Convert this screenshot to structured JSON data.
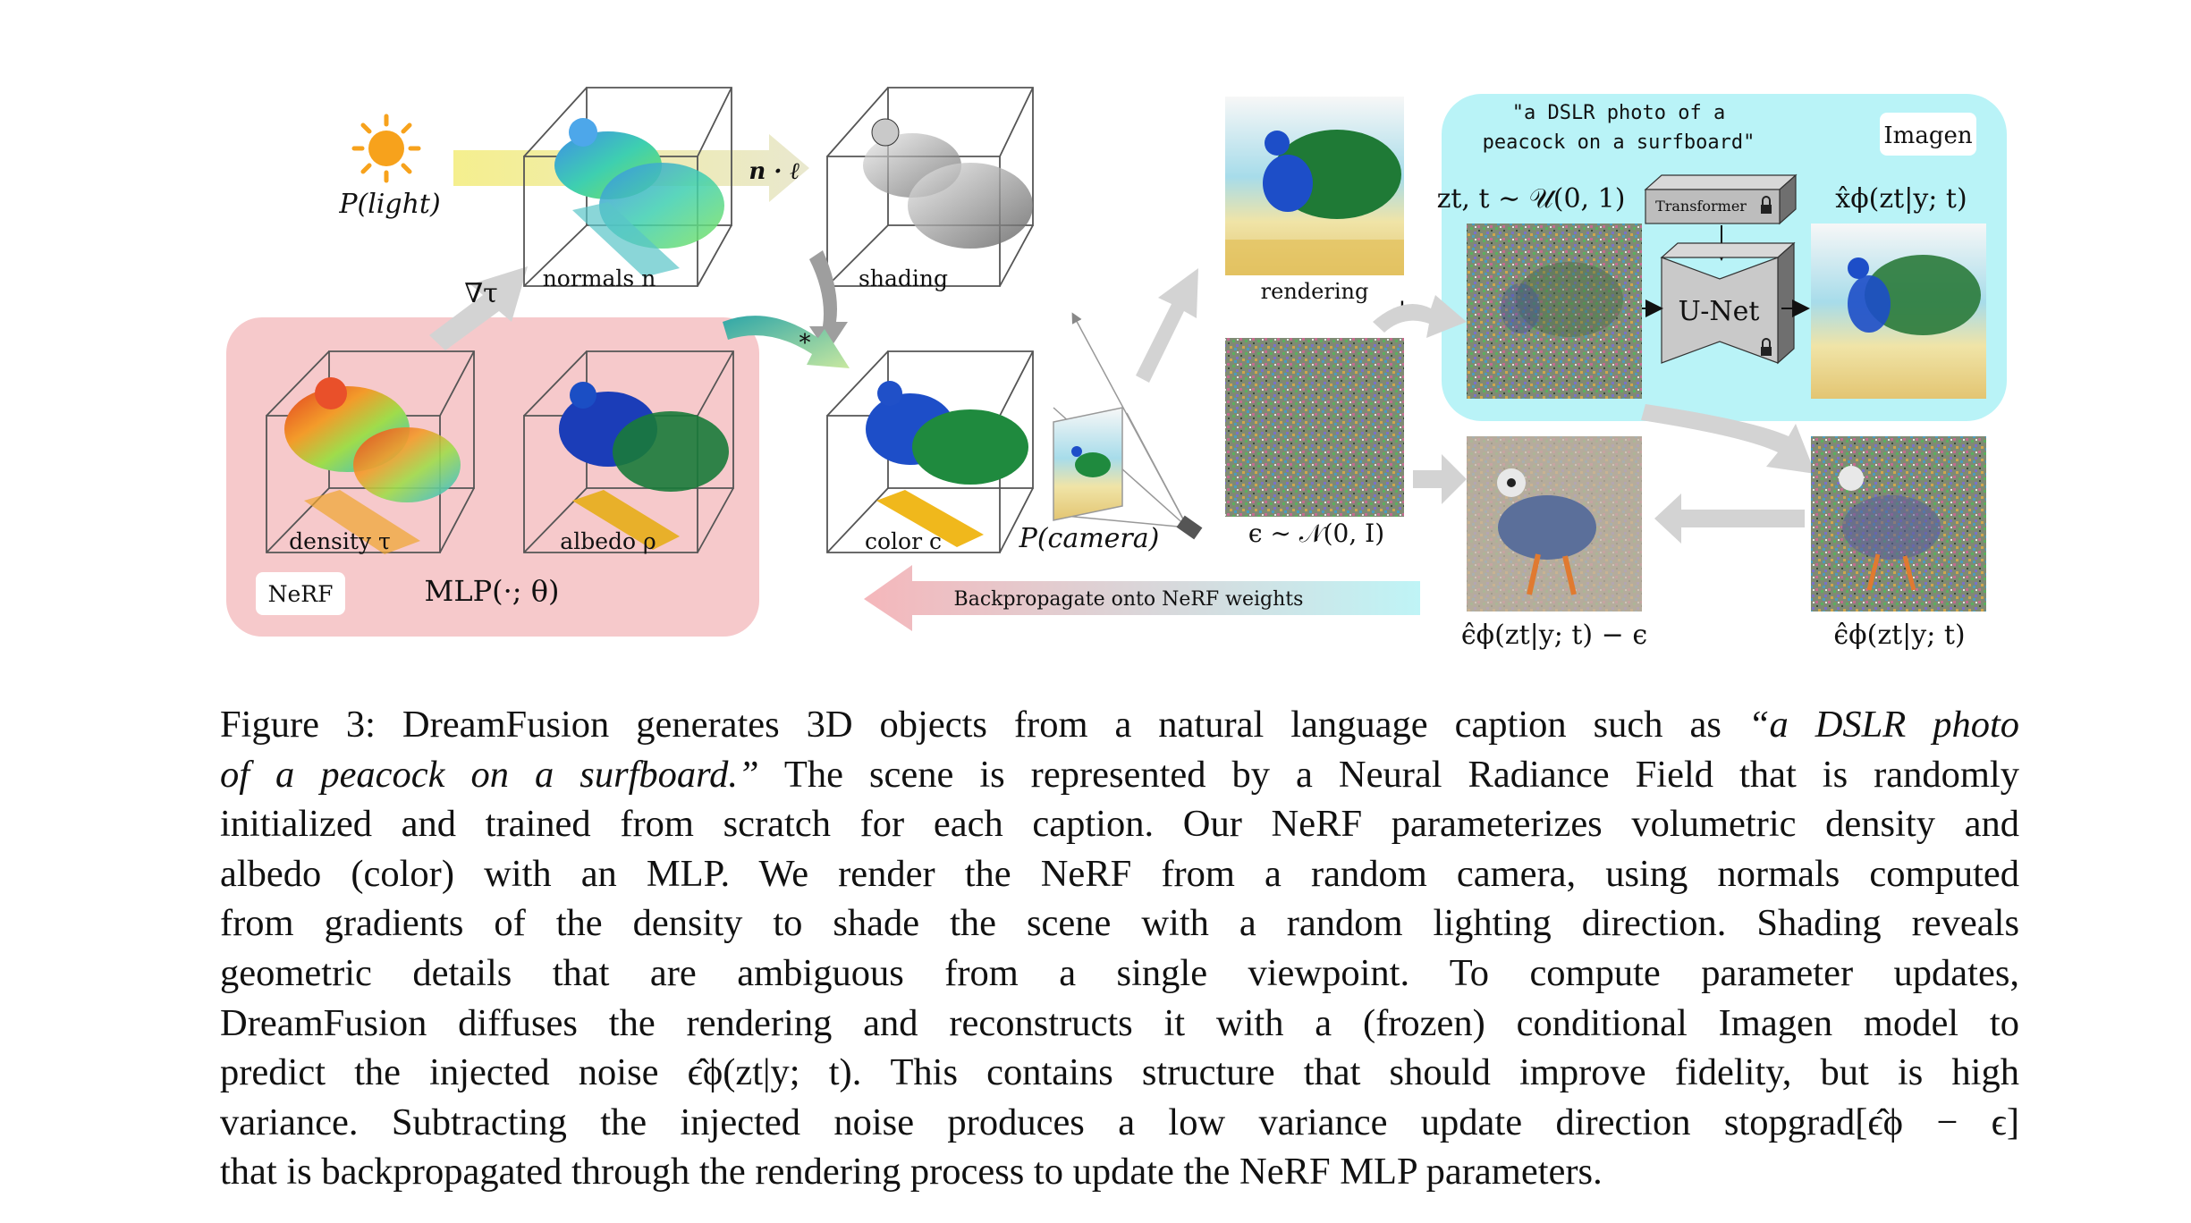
{
  "figure": {
    "light_label": "P(light)",
    "grad_label": "∇τ",
    "normals_label": "normals n",
    "dot_label": "n · ℓ",
    "shading_label": "shading",
    "star_label": "*",
    "density_label": "density τ",
    "albedo_label": "albedo ρ",
    "nerf_badge": "NeRF",
    "mlp_label": "MLP(·; θ)",
    "color_label": "color c",
    "camera_label": "P(camera)",
    "backprop_label": "Backpropagate onto NeRF weights",
    "rendering_label": "rendering",
    "plus_label": "+",
    "noise_label": "ϵ ∼ 𝒩(0, I)",
    "prompt_line1": "\"a DSLR photo of a",
    "prompt_line2": "peacock on a surfboard\"",
    "imagen_badge": "Imagen",
    "zt_label": "zt, t ∼ 𝒰(0, 1)",
    "transformer_label": "Transformer",
    "unet_label": "U-Net",
    "xhat_label": "x̂ϕ(zt|y; t)",
    "diff_label": "ϵ̂ϕ(zt|y; t) − ϵ",
    "epshat_label": "ϵ̂ϕ(zt|y; t)"
  },
  "caption": {
    "line1_a": "Figure 3: DreamFusion generates 3D objects from a natural language caption such as ",
    "line1_b": "“a DSLR photo",
    "line2_a": "of a peacock on a surfboard.”",
    "line2_b": " The scene is represented by a Neural Radiance Field that is randomly",
    "line3": "initialized and trained from scratch for each caption. Our NeRF parameterizes volumetric density and",
    "line4": "albedo (color) with an MLP. We render the NeRF from a random camera, using normals computed",
    "line5": "from gradients of the density to shade the scene with a random lighting direction. Shading reveals",
    "line6": "geometric details that are ambiguous from a single viewpoint.  To compute parameter updates,",
    "line7": "DreamFusion diffuses the rendering and reconstructs it with a (frozen) conditional Imagen model to",
    "line8": "predict the injected noise ϵ̂ϕ(zt|y; t). This contains structure that should improve fidelity, but is high",
    "line9": "variance. Subtracting the injected noise produces a low variance update direction stopgrad[ϵ̂ϕ − ϵ]",
    "line10": "that is backpropagated through the rendering process to update the NeRF MLP parameters."
  },
  "colors": {
    "nerf_panel": "#f6c9cb",
    "imagen_panel": "#b9f3f7",
    "arrow_gray": "#d3d3d3",
    "light_beam": "#f3ee9a",
    "sun": "#f7a21c",
    "backprop_start": "#f7c3c6",
    "backprop_end": "#bff4f6"
  },
  "icons": [
    "sun-icon",
    "lock-icon",
    "camera-icon",
    "arrow-icon"
  ]
}
